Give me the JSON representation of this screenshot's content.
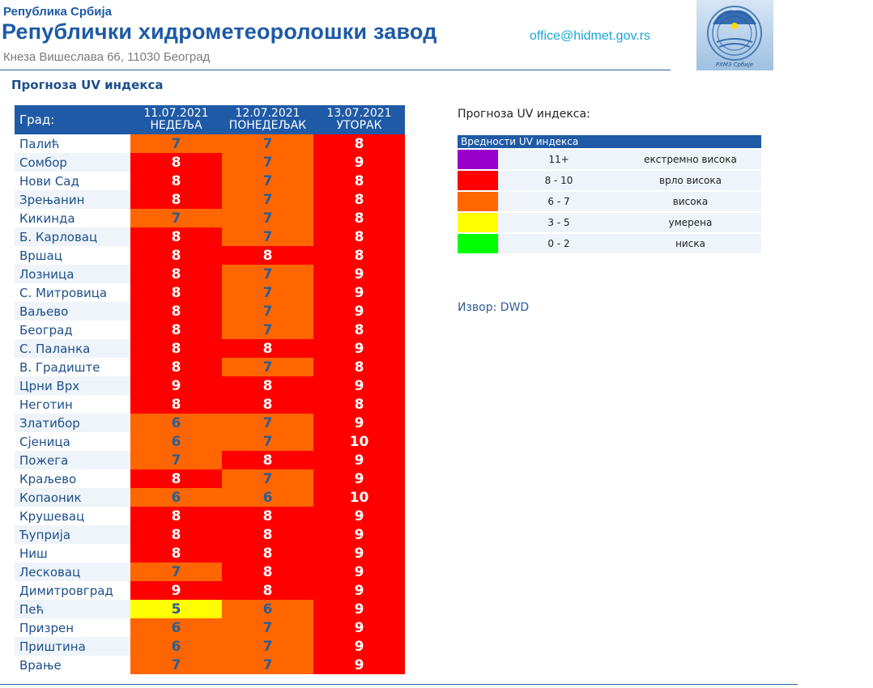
{
  "header": {
    "republic": "Република Србија",
    "institution": "Републички хидрометеоролошки завод",
    "address": "Кнеза Вишеслава 66, 11030  Београд",
    "email": "office@hidmet.gov.rs",
    "logo_text": "РХМЗ Србије"
  },
  "page_title": "Прогноза UV индекса",
  "table": {
    "city_header": "Град:",
    "days": [
      {
        "date": "11.07.2021",
        "day": "НЕДЕЉА"
      },
      {
        "date": "12.07.2021",
        "day": "ПОНЕДЕЉАК"
      },
      {
        "date": "13.07.2021",
        "day": "УТОРАК"
      }
    ],
    "rows": [
      {
        "city": "Палић",
        "v": [
          7,
          7,
          8
        ]
      },
      {
        "city": "Сомбор",
        "v": [
          8,
          7,
          9
        ]
      },
      {
        "city": "Нови Сад",
        "v": [
          8,
          7,
          8
        ]
      },
      {
        "city": "Зрењанин",
        "v": [
          8,
          7,
          8
        ]
      },
      {
        "city": "Кикинда",
        "v": [
          7,
          7,
          8
        ]
      },
      {
        "city": "Б. Карловац",
        "v": [
          8,
          7,
          8
        ]
      },
      {
        "city": "Вршац",
        "v": [
          8,
          8,
          8
        ]
      },
      {
        "city": "Лозница",
        "v": [
          8,
          7,
          9
        ]
      },
      {
        "city": "С. Митровица",
        "v": [
          8,
          7,
          9
        ]
      },
      {
        "city": "Ваљево",
        "v": [
          8,
          7,
          9
        ]
      },
      {
        "city": "Београд",
        "v": [
          8,
          7,
          8
        ]
      },
      {
        "city": "С. Паланка",
        "v": [
          8,
          8,
          9
        ]
      },
      {
        "city": "В. Градиште",
        "v": [
          8,
          7,
          8
        ]
      },
      {
        "city": "Црни Врх",
        "v": [
          9,
          8,
          9
        ]
      },
      {
        "city": "Неготин",
        "v": [
          8,
          8,
          8
        ]
      },
      {
        "city": "Златибор",
        "v": [
          6,
          7,
          9
        ]
      },
      {
        "city": "Сјеница",
        "v": [
          6,
          7,
          10
        ]
      },
      {
        "city": "Пожега",
        "v": [
          7,
          8,
          9
        ]
      },
      {
        "city": "Краљево",
        "v": [
          8,
          7,
          9
        ]
      },
      {
        "city": "Копаоник",
        "v": [
          6,
          6,
          10
        ]
      },
      {
        "city": "Крушевац",
        "v": [
          8,
          8,
          9
        ]
      },
      {
        "city": "Ћуприја",
        "v": [
          8,
          8,
          9
        ]
      },
      {
        "city": "Ниш",
        "v": [
          8,
          8,
          9
        ]
      },
      {
        "city": "Лесковац",
        "v": [
          7,
          8,
          9
        ]
      },
      {
        "city": "Димитровград",
        "v": [
          9,
          8,
          9
        ]
      },
      {
        "city": "Пећ",
        "v": [
          5,
          6,
          9
        ]
      },
      {
        "city": "Призрен",
        "v": [
          6,
          7,
          9
        ]
      },
      {
        "city": "Приштина",
        "v": [
          6,
          7,
          9
        ]
      },
      {
        "city": "Врање",
        "v": [
          7,
          7,
          9
        ]
      }
    ]
  },
  "legend": {
    "title": "Прогноза UV индекса:",
    "header": "Вредности UV индекса",
    "items": [
      {
        "range": "11+",
        "label": "екстремно висока",
        "color": "#9900cc"
      },
      {
        "range": "8 - 10",
        "label": "врло висока",
        "color": "#ff0000"
      },
      {
        "range": "6 - 7",
        "label": "висока",
        "color": "#ff6600"
      },
      {
        "range": "3 - 5",
        "label": "умерена",
        "color": "#ffff00"
      },
      {
        "range": "0 - 2",
        "label": "ниска",
        "color": "#00ff00"
      }
    ]
  },
  "source": "Извор: DWD",
  "colors": {
    "blue": "#1f5aa6",
    "value_text_light": "#ffffff",
    "value_text_dark": "#2c5d94"
  }
}
